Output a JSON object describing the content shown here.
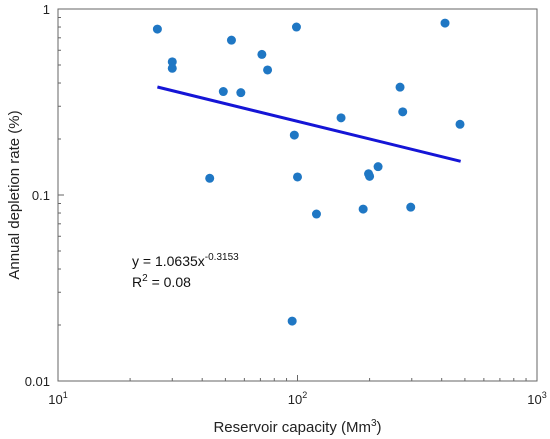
{
  "chart_data": {
    "type": "scatter",
    "title": "",
    "xlabel": "Reservoir capacity (Mm",
    "xlabel_sup": "3",
    "xlabel_end": ")",
    "ylabel": "Annual depletion rate (%)",
    "xscale": "log",
    "yscale": "log",
    "xlim": [
      10,
      1000
    ],
    "ylim": [
      0.01,
      1
    ],
    "grid": false,
    "legend": "none",
    "x_ticks": [
      {
        "value": 10,
        "base": "10",
        "exp": "1"
      },
      {
        "value": 100,
        "base": "10",
        "exp": "2"
      },
      {
        "value": 1000,
        "base": "10",
        "exp": "3"
      }
    ],
    "y_ticks": [
      {
        "value": 1,
        "label": "1"
      },
      {
        "value": 0.1,
        "label": "0.1"
      },
      {
        "value": 0.01,
        "label": "0.01"
      }
    ],
    "point_color": "#1f77c4",
    "line_color": "#1515d6",
    "points": [
      {
        "x": 26,
        "y": 0.78
      },
      {
        "x": 30,
        "y": 0.52
      },
      {
        "x": 30,
        "y": 0.48
      },
      {
        "x": 43,
        "y": 0.123
      },
      {
        "x": 49,
        "y": 0.36
      },
      {
        "x": 53,
        "y": 0.68
      },
      {
        "x": 58,
        "y": 0.355
      },
      {
        "x": 71,
        "y": 0.57
      },
      {
        "x": 75,
        "y": 0.47
      },
      {
        "x": 95,
        "y": 0.021
      },
      {
        "x": 97,
        "y": 0.21
      },
      {
        "x": 99,
        "y": 0.8
      },
      {
        "x": 100,
        "y": 0.125
      },
      {
        "x": 120,
        "y": 0.079
      },
      {
        "x": 152,
        "y": 0.26
      },
      {
        "x": 188,
        "y": 0.084
      },
      {
        "x": 198,
        "y": 0.13
      },
      {
        "x": 200,
        "y": 0.126
      },
      {
        "x": 217,
        "y": 0.142
      },
      {
        "x": 268,
        "y": 0.38
      },
      {
        "x": 275,
        "y": 0.28
      },
      {
        "x": 297,
        "y": 0.086
      },
      {
        "x": 413,
        "y": 0.84
      },
      {
        "x": 477,
        "y": 0.24
      }
    ],
    "trendline": {
      "type": "power",
      "a": 1.0635,
      "b": -0.3153,
      "x_start": 26,
      "x_end": 480
    },
    "annotations": {
      "equation_prefix": "y = 1.0635x",
      "equation_exp": "-0.3153",
      "r2_prefix": "R",
      "r2_sup": "2",
      "r2_value": " = 0.08"
    }
  }
}
